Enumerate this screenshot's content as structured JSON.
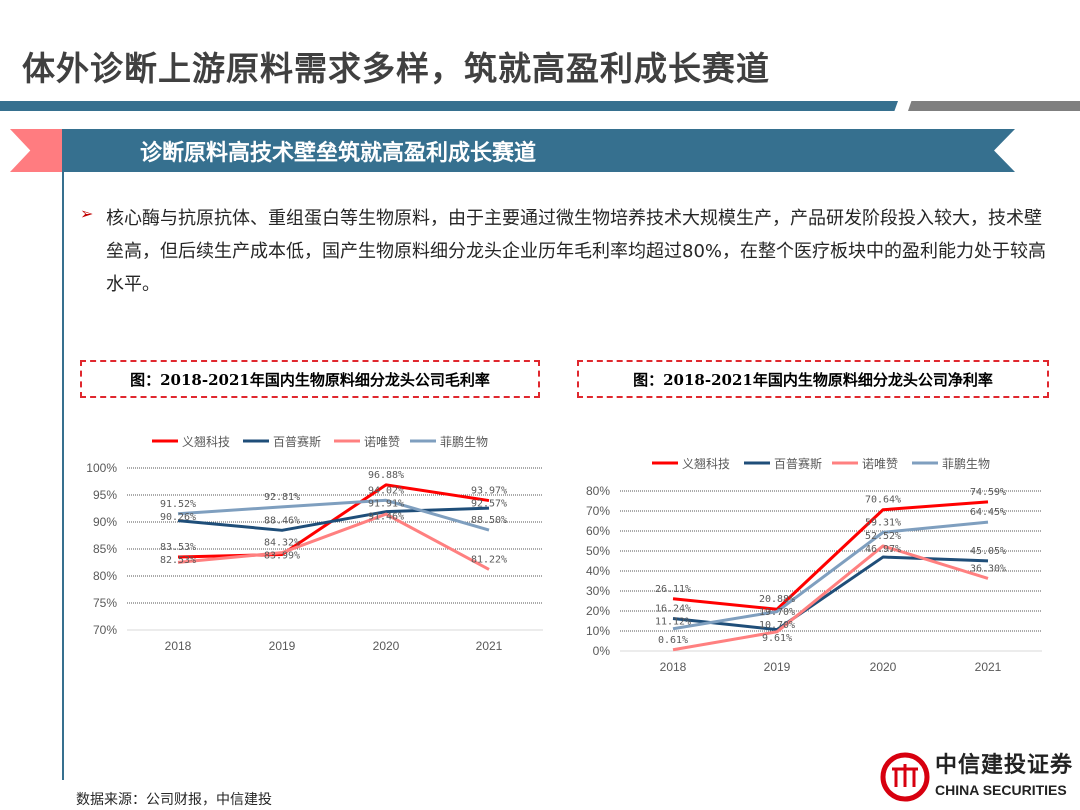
{
  "title": "体外诊断上游原料需求多样，筑就高盈利成长赛道",
  "banner": "诊断原料高技术壁垒筑就高盈利成长赛道",
  "bullet": "核心酶与抗原抗体、重组蛋白等生物原料，由于主要通过微生物培养技术大规模生产，产品研发阶段投入较大，技术壁垒高，但后续生产成本低，国产生物原料细分龙头企业历年毛利率均超过80%，在整个医疗板块中的盈利能力处于较高水平。",
  "source": "数据来源：公司财报，中信建投",
  "logo": {
    "cn": "中信建投证券",
    "en": "CHINA SECURITIES"
  },
  "colors": {
    "accent": "#36708f",
    "pink": "#ff7c80"
  },
  "chart_data": [
    {
      "type": "line",
      "title": "图：2018-2021年国内生物原料细分龙头公司毛利率",
      "categories": [
        "2018",
        "2019",
        "2020",
        "2021"
      ],
      "ylim": [
        70,
        100
      ],
      "yticks": [
        "70%",
        "75%",
        "80%",
        "85%",
        "90%",
        "95%",
        "100%"
      ],
      "grid": true,
      "legend": "top",
      "series": [
        {
          "name": "义翘科技",
          "color": "#ff0000",
          "values": [
            83.53,
            83.99,
            96.88,
            93.97
          ],
          "labels": [
            "83.53%",
            "83.99%",
            "96.88%",
            "93.97%"
          ]
        },
        {
          "name": "百普赛斯",
          "color": "#1f4e79",
          "values": [
            90.26,
            88.46,
            91.91,
            92.57
          ],
          "labels": [
            "90.26%",
            "88.46%",
            "91.91%",
            "92.57%"
          ]
        },
        {
          "name": "诺唯赞",
          "color": "#ff8080",
          "values": [
            82.53,
            84.32,
            91.46,
            81.22
          ],
          "labels": [
            "82.53%",
            "84.32%",
            "91.46%",
            "81.22%"
          ]
        },
        {
          "name": "菲鹏生物",
          "color": "#7f9fbf",
          "values": [
            91.52,
            92.81,
            94.02,
            88.5
          ],
          "labels": [
            "91.52%",
            "92.81%",
            "94.02%",
            "88.50%"
          ]
        }
      ]
    },
    {
      "type": "line",
      "title": "图：2018-2021年国内生物原料细分龙头公司净利率",
      "categories": [
        "2018",
        "2019",
        "2020",
        "2021"
      ],
      "ylim": [
        0,
        80
      ],
      "yticks": [
        "0%",
        "10%",
        "20%",
        "30%",
        "40%",
        "50%",
        "60%",
        "70%",
        "80%"
      ],
      "grid": true,
      "legend": "top",
      "series": [
        {
          "name": "义翘科技",
          "color": "#ff0000",
          "values": [
            26.11,
            20.88,
            70.64,
            74.59
          ],
          "labels": [
            "26.11%",
            "20.88%",
            "70.64%",
            "74.59%"
          ]
        },
        {
          "name": "百普赛斯",
          "color": "#1f4e79",
          "values": [
            16.24,
            10.7,
            46.97,
            45.05
          ],
          "labels": [
            "16.24%",
            "10.70%",
            "46.97%",
            "45.05%"
          ]
        },
        {
          "name": "诺唯赞",
          "color": "#ff8080",
          "values": [
            0.61,
            9.61,
            52.52,
            36.3
          ],
          "labels": [
            "0.61%",
            "9.61%",
            "52.52%",
            "36.30%"
          ]
        },
        {
          "name": "菲鹏生物",
          "color": "#7f9fbf",
          "values": [
            11.12,
            19.7,
            59.31,
            64.45
          ],
          "labels": [
            "11.12%",
            "19.70%",
            "59.31%",
            "64.45%"
          ]
        }
      ]
    }
  ]
}
